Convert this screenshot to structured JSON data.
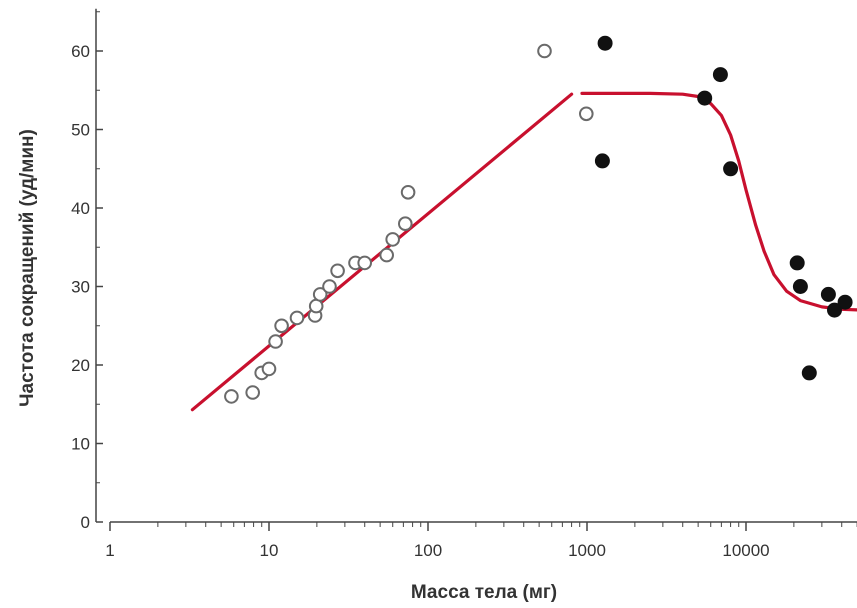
{
  "chart_data": {
    "type": "scatter",
    "xlabel": "Масса тела (мг)",
    "ylabel": "Частота сокращений (уд/мин)",
    "x_scale": "log",
    "xlim": [
      1,
      55000
    ],
    "ylim": [
      0,
      65
    ],
    "x_ticks": [
      1,
      10,
      100,
      1000,
      10000
    ],
    "x_tick_labels": [
      "1",
      "10",
      "100",
      "1000",
      "10000"
    ],
    "y_ticks": [
      0,
      10,
      20,
      30,
      40,
      50,
      60
    ],
    "y_tick_labels": [
      "0",
      "10",
      "20",
      "30",
      "40",
      "50",
      "60"
    ],
    "grid": false,
    "colors": {
      "fit": "#c8102e",
      "open_marker": "#6a6a6a",
      "filled_marker": "#111111",
      "axis": "#444444"
    },
    "series": [
      {
        "marker": "open-circle",
        "points": [
          [
            5.8,
            16
          ],
          [
            7.9,
            16.5
          ],
          [
            9,
            19
          ],
          [
            10,
            19.5
          ],
          [
            11,
            23
          ],
          [
            12,
            25
          ],
          [
            15,
            26
          ],
          [
            19.5,
            26.3
          ],
          [
            19.8,
            27.5
          ],
          [
            21,
            29
          ],
          [
            24,
            30
          ],
          [
            27,
            32
          ],
          [
            35,
            33
          ],
          [
            40,
            33
          ],
          [
            55,
            34
          ],
          [
            60,
            36
          ],
          [
            72,
            38
          ],
          [
            75,
            42
          ],
          [
            540,
            60
          ],
          [
            990,
            52
          ]
        ]
      },
      {
        "marker": "filled-circle",
        "points": [
          [
            1300,
            61
          ],
          [
            1250,
            46
          ],
          [
            5500,
            54
          ],
          [
            6900,
            57
          ],
          [
            8000,
            45
          ],
          [
            21000,
            33
          ],
          [
            22000,
            30
          ],
          [
            25000,
            19
          ],
          [
            33000,
            29
          ],
          [
            36000,
            27
          ],
          [
            42000,
            28
          ]
        ]
      }
    ],
    "fit_lines": [
      {
        "points": [
          [
            3.3,
            14.3
          ],
          [
            800,
            54.5
          ]
        ]
      },
      {
        "points": [
          [
            930,
            54.6
          ],
          [
            2500,
            54.6
          ],
          [
            4000,
            54.5
          ],
          [
            5000,
            54.2
          ],
          [
            6000,
            53.3
          ],
          [
            7000,
            51.8
          ],
          [
            8000,
            49.3
          ],
          [
            9000,
            46.0
          ],
          [
            10000,
            42.3
          ],
          [
            11500,
            37.8
          ],
          [
            13000,
            34.5
          ],
          [
            15000,
            31.5
          ],
          [
            18000,
            29.4
          ],
          [
            22000,
            28.2
          ],
          [
            30000,
            27.4
          ],
          [
            40000,
            27.1
          ],
          [
            55000,
            27.0
          ]
        ]
      }
    ]
  }
}
